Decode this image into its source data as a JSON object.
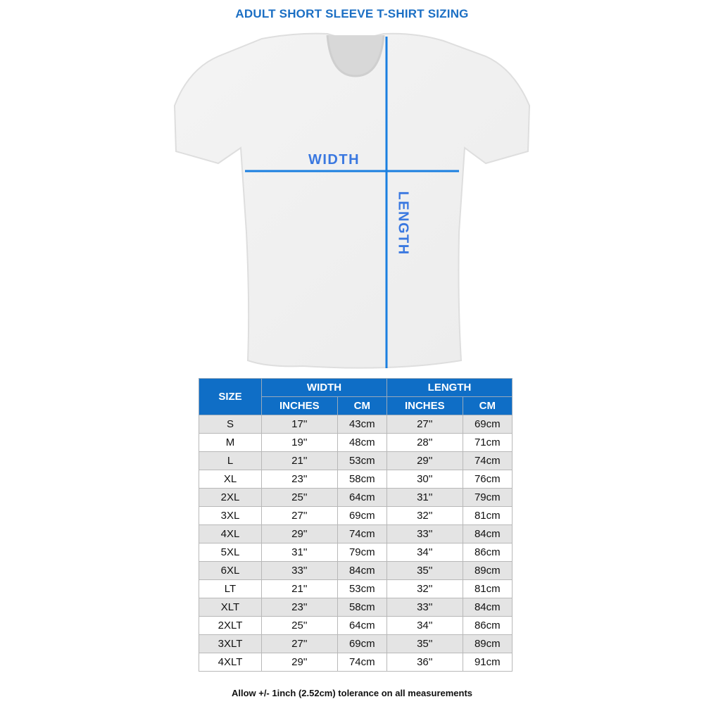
{
  "title": "ADULT SHORT SLEEVE T-SHIRT SIZING",
  "diagram": {
    "width_label": "WIDTH",
    "length_label": "LENGTH",
    "line_color": "#1a7fe0"
  },
  "table": {
    "headers": {
      "size": "SIZE",
      "width": "WIDTH",
      "length": "LENGTH",
      "inches": "INCHES",
      "cm": "CM"
    },
    "rows": [
      [
        "S",
        "17''",
        "43cm",
        "27''",
        "69cm"
      ],
      [
        "M",
        "19''",
        "48cm",
        "28''",
        "71cm"
      ],
      [
        "L",
        "21''",
        "53cm",
        "29''",
        "74cm"
      ],
      [
        "XL",
        "23''",
        "58cm",
        "30''",
        "76cm"
      ],
      [
        "2XL",
        "25''",
        "64cm",
        "31''",
        "79cm"
      ],
      [
        "3XL",
        "27''",
        "69cm",
        "32''",
        "81cm"
      ],
      [
        "4XL",
        "29''",
        "74cm",
        "33''",
        "84cm"
      ],
      [
        "5XL",
        "31''",
        "79cm",
        "34''",
        "86cm"
      ],
      [
        "6XL",
        "33''",
        "84cm",
        "35''",
        "89cm"
      ],
      [
        "LT",
        "21''",
        "53cm",
        "32''",
        "81cm"
      ],
      [
        "XLT",
        "23''",
        "58cm",
        "33''",
        "84cm"
      ],
      [
        "2XLT",
        "25''",
        "64cm",
        "34''",
        "86cm"
      ],
      [
        "3XLT",
        "27''",
        "69cm",
        "35''",
        "89cm"
      ],
      [
        "4XLT",
        "29''",
        "74cm",
        "36''",
        "91cm"
      ]
    ]
  },
  "note": "Allow +/- 1inch (2.52cm) tolerance on all measurements"
}
